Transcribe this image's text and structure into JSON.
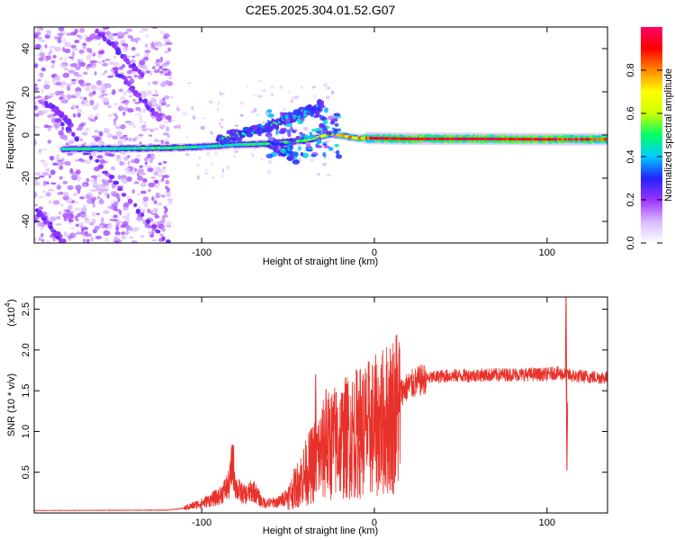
{
  "chart_data": [
    {
      "type": "heatmap",
      "title": "C2E5.2025.304.01.52.G07",
      "xlabel": "Height of straight line (km)",
      "ylabel": "Frequency (Hz)",
      "xlim": [
        -197,
        135
      ],
      "ylim": [
        -50,
        50
      ],
      "xticks": [
        -100,
        0,
        100
      ],
      "xtick_labels": [
        "-100",
        "0",
        "100"
      ],
      "yticks": [
        -40,
        -20,
        0,
        20,
        40
      ],
      "ytick_labels": [
        "-40",
        "-20",
        "0",
        "20",
        "40"
      ],
      "colorbar": {
        "label": "Normalized spectral amplitude",
        "range": [
          0,
          1
        ],
        "ticks": [
          0.0,
          0.2,
          0.4,
          0.6,
          0.8
        ],
        "tick_labels": [
          "0.0",
          "0.2",
          "0.4",
          "0.6",
          "0.8"
        ],
        "colors": [
          "#ffffff",
          "#d8b8ff",
          "#9933ff",
          "#2222ff",
          "#00ccff",
          "#00ff66",
          "#ccff00",
          "#ffff00",
          "#ff8800",
          "#ff0000",
          "#ff0066"
        ]
      },
      "features": {
        "main_line": [
          {
            "x": -180,
            "y": -6.5,
            "a": 0.45
          },
          {
            "x": -150,
            "y": -6.3,
            "a": 0.45
          },
          {
            "x": -120,
            "y": -6.0,
            "a": 0.5
          },
          {
            "x": -100,
            "y": -5.5,
            "a": 0.45
          },
          {
            "x": -80,
            "y": -4.5,
            "a": 0.45
          },
          {
            "x": -60,
            "y": -4.0,
            "a": 0.5
          },
          {
            "x": -40,
            "y": -2.5,
            "a": 0.5
          },
          {
            "x": -25,
            "y": 0.5,
            "a": 0.7
          },
          {
            "x": -10,
            "y": -1.5,
            "a": 0.75
          },
          {
            "x": 0,
            "y": -1.5,
            "a": 0.85
          },
          {
            "x": 20,
            "y": -1.8,
            "a": 0.9
          },
          {
            "x": 60,
            "y": -1.8,
            "a": 0.95
          },
          {
            "x": 100,
            "y": -2.0,
            "a": 0.9
          },
          {
            "x": 135,
            "y": -2.0,
            "a": 0.85
          }
        ],
        "rising_branch": [
          {
            "x": -90,
            "y": -2,
            "a": 0.5
          },
          {
            "x": -70,
            "y": 2,
            "a": 0.45
          },
          {
            "x": -55,
            "y": 6,
            "a": 0.45
          },
          {
            "x": -45,
            "y": 9,
            "a": 0.45
          },
          {
            "x": -35,
            "y": 12,
            "a": 0.4
          },
          {
            "x": -30,
            "y": 14,
            "a": 0.3
          }
        ],
        "falling_branch": [
          {
            "x": -60,
            "y": -4,
            "a": 0.4
          },
          {
            "x": -52,
            "y": -8,
            "a": 0.4
          },
          {
            "x": -45,
            "y": -11,
            "a": 0.35
          }
        ],
        "diagonal_streaks": [
          {
            "x0": -180,
            "y0": 5,
            "x1": -120,
            "y1": -50
          },
          {
            "x0": -160,
            "y0": 48,
            "x1": -135,
            "y1": 28
          },
          {
            "x0": -150,
            "y0": 30,
            "x1": -125,
            "y1": 8
          },
          {
            "x0": -195,
            "y0": -35,
            "x1": -180,
            "y1": -50
          },
          {
            "x0": -190,
            "y0": 15,
            "x1": -175,
            "y1": 5
          }
        ]
      }
    },
    {
      "type": "line",
      "xlabel": "Height of straight line (km)",
      "ylabel": "SNR (10 * v/v)",
      "y_scale_label": "(x10",
      "y_scale_exponent": "4",
      "xlim": [
        -197,
        135
      ],
      "ylim": [
        0,
        26500
      ],
      "xticks": [
        -100,
        0,
        100
      ],
      "xtick_labels": [
        "-100",
        "0",
        "100"
      ],
      "yticks": [
        5000,
        10000,
        15000,
        20000,
        25000
      ],
      "ytick_labels": [
        "0.5",
        "1.0",
        "1.5",
        "2.0",
        "2.5"
      ],
      "series": [
        {
          "name": "SNR",
          "color": "#e8312a",
          "envelope": [
            {
              "x": -197,
              "y": 300
            },
            {
              "x": -120,
              "y": 350
            },
            {
              "x": -110,
              "y": 600
            },
            {
              "x": -100,
              "y": 1200
            },
            {
              "x": -90,
              "y": 2000
            },
            {
              "x": -84,
              "y": 3500
            },
            {
              "x": -82,
              "y": 6500
            },
            {
              "x": -80,
              "y": 3000
            },
            {
              "x": -75,
              "y": 2200
            },
            {
              "x": -70,
              "y": 2800
            },
            {
              "x": -65,
              "y": 1300
            },
            {
              "x": -60,
              "y": 1200
            },
            {
              "x": -55,
              "y": 1400
            },
            {
              "x": -50,
              "y": 2200
            },
            {
              "x": -45,
              "y": 3800
            },
            {
              "x": -40,
              "y": 5500
            },
            {
              "x": -35,
              "y": 7000
            },
            {
              "x": -30,
              "y": 8500
            },
            {
              "x": -25,
              "y": 9500
            },
            {
              "x": -20,
              "y": 10000
            },
            {
              "x": -15,
              "y": 10500
            },
            {
              "x": -10,
              "y": 11000
            },
            {
              "x": -5,
              "y": 11500
            },
            {
              "x": 0,
              "y": 11800
            },
            {
              "x": 5,
              "y": 12500
            },
            {
              "x": 10,
              "y": 13500
            },
            {
              "x": 15,
              "y": 14800
            },
            {
              "x": 20,
              "y": 15600
            },
            {
              "x": 25,
              "y": 16100
            },
            {
              "x": 30,
              "y": 16500
            },
            {
              "x": 40,
              "y": 16800
            },
            {
              "x": 60,
              "y": 16900
            },
            {
              "x": 80,
              "y": 17000
            },
            {
              "x": 100,
              "y": 17000
            },
            {
              "x": 105,
              "y": 17200
            },
            {
              "x": 110,
              "y": 17000
            },
            {
              "x": 115,
              "y": 16800
            },
            {
              "x": 135,
              "y": 16600
            }
          ],
          "spikes": [
            {
              "x": -34,
              "y": 17000
            },
            {
              "x": -28,
              "y": 15200
            },
            {
              "x": -22,
              "y": 13000
            },
            {
              "x": -18,
              "y": 12500
            },
            {
              "x": -9,
              "y": 15000
            },
            {
              "x": -3,
              "y": 13500
            },
            {
              "x": 9,
              "y": 14700
            },
            {
              "x": 111,
              "y": 27000
            },
            {
              "x": 111.5,
              "y": 5200
            }
          ]
        }
      ]
    }
  ]
}
